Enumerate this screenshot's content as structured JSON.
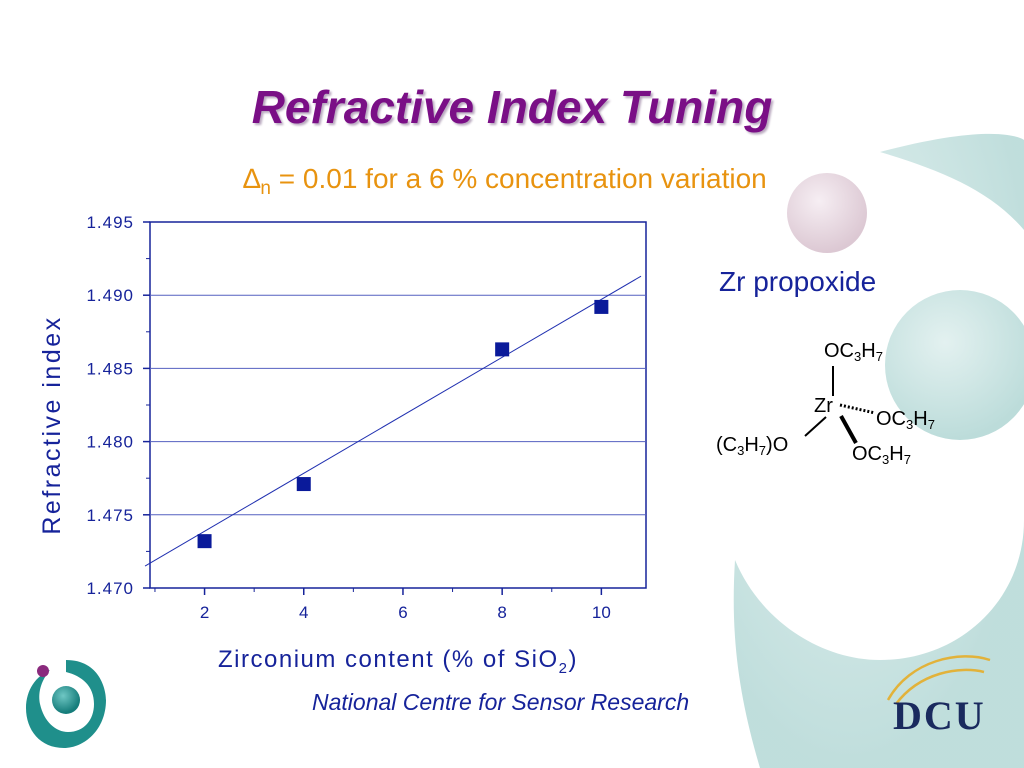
{
  "slide": {
    "title": "Refractive Index Tuning",
    "subtitle_delta": "∆",
    "subtitle_sub": "n",
    "subtitle_rest": " = 0.01 for a 6 % concentration variation",
    "footer": "National Centre for Sensor Research",
    "brand": "DCU",
    "colors": {
      "title": "#7a0f86",
      "subtitle": "#e8930f",
      "navy": "#16239a",
      "teal": "#c7e3e1"
    }
  },
  "molecule": {
    "title": "Zr propoxide",
    "center": "Zr",
    "ligand_top": [
      "OC",
      "3",
      "H",
      "7"
    ],
    "ligand_right": [
      "OC",
      "3",
      "H",
      "7"
    ],
    "ligand_bottom": [
      "OC",
      "3",
      "H",
      "7"
    ],
    "ligand_left": [
      "(C",
      "3",
      "H",
      "7",
      ")O"
    ]
  },
  "chart_data": {
    "type": "scatter",
    "x": [
      2,
      4,
      8,
      10
    ],
    "y": [
      1.4732,
      1.4771,
      1.4863,
      1.4892
    ],
    "fit_line": {
      "x": [
        0.8,
        10.8
      ],
      "y": [
        1.4715,
        1.4913
      ]
    },
    "xlim": [
      0.9,
      10.9
    ],
    "ylim": [
      1.47,
      1.495
    ],
    "xticks": [
      2,
      4,
      6,
      8,
      10
    ],
    "xtick_labels": [
      "2",
      "4",
      "6",
      "8",
      "10"
    ],
    "yticks": [
      1.47,
      1.475,
      1.48,
      1.485,
      1.49,
      1.495
    ],
    "ytick_labels": [
      "1.470",
      "1.475",
      "1.480",
      "1.485",
      "1.490",
      "1.495"
    ],
    "xlabel": "Zirconium content (% of SiO",
    "xlabel_sub": "2",
    "xlabel_end": ")",
    "ylabel": "Refractive index",
    "grid": "horizontal",
    "marker_color": "#0a1a9a",
    "line_color": "#2030b0"
  }
}
